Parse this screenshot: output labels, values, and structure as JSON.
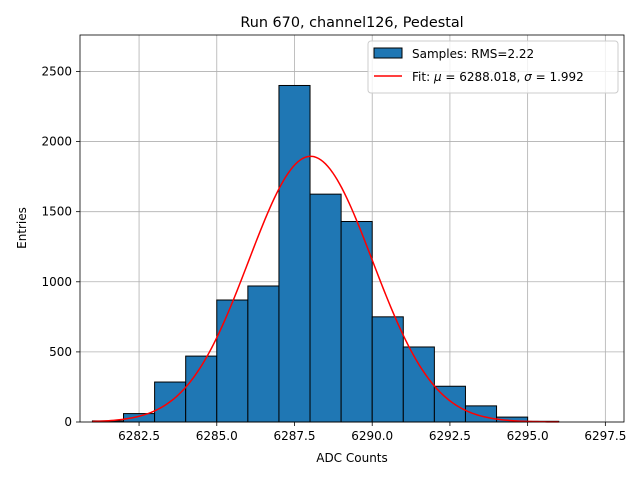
{
  "chart_data": {
    "type": "histogram",
    "title": "Run 670, channel126, Pedestal",
    "xlabel": "ADC Counts",
    "ylabel": "Entries",
    "xlim": [
      6280.6,
      6298.1
    ],
    "ylim": [
      0,
      2760
    ],
    "xticks": [
      6282.5,
      6285.0,
      6287.5,
      6290.0,
      6292.5,
      6295.0,
      6297.5
    ],
    "xtick_labels": [
      "6282.5",
      "6285.0",
      "6287.5",
      "6290.0",
      "6292.5",
      "6295.0",
      "6297.5"
    ],
    "yticks": [
      0,
      500,
      1000,
      1500,
      2000,
      2500
    ],
    "ytick_labels": [
      "0",
      "500",
      "1000",
      "1500",
      "2000",
      "2500"
    ],
    "grid": true,
    "legend_position": "top-right",
    "histogram": {
      "name": "Samples: RMS=2.22",
      "color": "#1f77b4",
      "edge_color": "#000000",
      "bins": [
        {
          "x0": 6281.0,
          "x1": 6282.0,
          "count": 8
        },
        {
          "x0": 6282.0,
          "x1": 6283.0,
          "count": 60
        },
        {
          "x0": 6283.0,
          "x1": 6284.0,
          "count": 285
        },
        {
          "x0": 6284.0,
          "x1": 6285.0,
          "count": 470
        },
        {
          "x0": 6285.0,
          "x1": 6286.0,
          "count": 870
        },
        {
          "x0": 6286.0,
          "x1": 6287.0,
          "count": 970
        },
        {
          "x0": 6287.0,
          "x1": 6288.0,
          "count": 2400
        },
        {
          "x0": 6288.0,
          "x1": 6289.0,
          "count": 1625
        },
        {
          "x0": 6289.0,
          "x1": 6290.0,
          "count": 1430
        },
        {
          "x0": 6290.0,
          "x1": 6291.0,
          "count": 750
        },
        {
          "x0": 6291.0,
          "x1": 6292.0,
          "count": 535
        },
        {
          "x0": 6292.0,
          "x1": 6293.0,
          "count": 255
        },
        {
          "x0": 6293.0,
          "x1": 6294.0,
          "count": 115
        },
        {
          "x0": 6294.0,
          "x1": 6295.0,
          "count": 35
        },
        {
          "x0": 6295.0,
          "x1": 6296.0,
          "count": 5
        }
      ]
    },
    "fit": {
      "name": "Fit: μ = 6288.018, σ = 1.992",
      "legend_label": {
        "prefix": "Fit: ",
        "mu_symbol": "μ",
        "mu_value": " = 6288.018, ",
        "sigma_symbol": "σ",
        "sigma_value": " = 1.992"
      },
      "type": "gaussian",
      "mu": 6288.018,
      "sigma": 1.992,
      "amplitude": 1895,
      "x_range": [
        6281.0,
        6296.0
      ],
      "color": "#ff0000"
    }
  }
}
